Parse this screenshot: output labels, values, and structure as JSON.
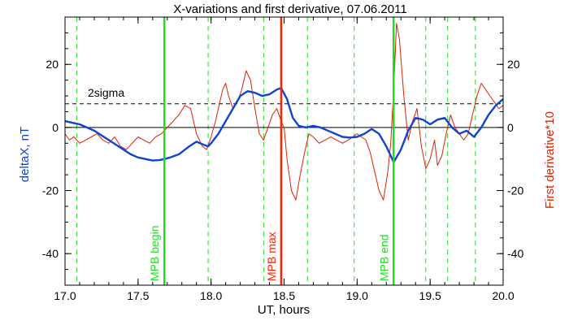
{
  "chart_data": {
    "type": "line",
    "title": "X-variations and first derivative, 07.06.2011",
    "xlabel": "UT, hours",
    "ylabel": "deltaX, nT",
    "ylabel_right": "First derivative*10",
    "xlim": [
      17.0,
      20.0
    ],
    "ylim": [
      -50,
      35
    ],
    "xticks": [
      "17.0",
      "17.5",
      "18.0",
      "18.5",
      "19.0",
      "19.5",
      "20.0"
    ],
    "yticks": [
      "-40",
      "-20",
      "0",
      "20"
    ],
    "yticks_right": [
      "-40",
      "-20",
      "0",
      "20"
    ],
    "threshold": {
      "label": "2sigma",
      "value": 7.5
    },
    "markers_solid": [
      {
        "label": "MPB begin",
        "x": 17.68,
        "color": "#22dd22"
      },
      {
        "label": "MPB max",
        "x": 18.48,
        "color": "#ff2200"
      },
      {
        "label": "MPB end",
        "x": 19.25,
        "color": "#22dd22"
      }
    ],
    "markers_dashed_x": [
      17.08,
      17.98,
      18.36,
      18.66,
      18.98,
      19.47,
      19.62,
      19.81
    ],
    "colors": {
      "deltaX": "#1144cc",
      "derivative": "#dd2200",
      "green": "#22dd22",
      "red": "#ff2200"
    },
    "series": [
      {
        "key": "deltaX",
        "x": [
          17.0,
          17.05,
          17.1,
          17.15,
          17.2,
          17.25,
          17.3,
          17.35,
          17.4,
          17.45,
          17.5,
          17.55,
          17.6,
          17.65,
          17.68,
          17.72,
          17.78,
          17.85,
          17.9,
          17.95,
          17.98,
          18.0,
          18.05,
          18.1,
          18.15,
          18.2,
          18.25,
          18.3,
          18.35,
          18.4,
          18.45,
          18.48,
          18.52,
          18.56,
          18.6,
          18.65,
          18.7,
          18.75,
          18.8,
          18.85,
          18.9,
          18.95,
          19.0,
          19.05,
          19.1,
          19.15,
          19.2,
          19.25,
          19.3,
          19.35,
          19.4,
          19.45,
          19.5,
          19.55,
          19.6,
          19.65,
          19.7,
          19.75,
          19.8,
          19.85,
          19.9,
          19.95,
          20.0
        ],
        "values": [
          2,
          1.5,
          1,
          0,
          -1,
          -2.5,
          -4,
          -5.5,
          -7,
          -8.5,
          -9.5,
          -10,
          -10.5,
          -10.3,
          -10,
          -9.5,
          -8.5,
          -6,
          -4.5,
          -5.5,
          -6,
          -5,
          -2,
          2,
          6,
          10,
          11.5,
          11,
          10,
          10.5,
          12,
          12.5,
          9,
          3,
          0.5,
          0,
          0.5,
          0,
          -1,
          -2,
          -3,
          -3.2,
          -3,
          -2,
          -0.5,
          -2,
          -6,
          -11,
          -7,
          -1,
          3,
          2.5,
          1,
          2.5,
          3,
          0,
          -2,
          -1,
          -3,
          0,
          4,
          7,
          9
        ]
      },
      {
        "key": "derivative",
        "x": [
          17.0,
          17.03,
          17.06,
          17.1,
          17.14,
          17.18,
          17.22,
          17.26,
          17.3,
          17.34,
          17.38,
          17.42,
          17.46,
          17.5,
          17.54,
          17.58,
          17.62,
          17.66,
          17.7,
          17.74,
          17.78,
          17.82,
          17.86,
          17.9,
          17.94,
          17.97,
          18.0,
          18.03,
          18.06,
          18.08,
          18.1,
          18.12,
          18.15,
          18.18,
          18.21,
          18.24,
          18.27,
          18.3,
          18.33,
          18.36,
          18.39,
          18.42,
          18.45,
          18.48,
          18.5,
          18.52,
          18.55,
          18.58,
          18.61,
          18.64,
          18.67,
          18.7,
          18.74,
          18.78,
          18.82,
          18.86,
          18.9,
          18.94,
          18.97,
          19.0,
          19.03,
          19.06,
          19.09,
          19.12,
          19.15,
          19.18,
          19.21,
          19.23,
          19.25,
          19.27,
          19.29,
          19.32,
          19.35,
          19.38,
          19.41,
          19.44,
          19.47,
          19.5,
          19.53,
          19.55,
          19.58,
          19.61,
          19.64,
          19.67,
          19.7,
          19.73,
          19.76,
          19.79,
          19.82,
          19.85,
          19.88,
          19.91,
          19.94,
          19.97,
          20.0
        ],
        "values": [
          -2,
          -4,
          -3,
          -5,
          -4,
          -3,
          -2,
          -4,
          -5,
          -3,
          -6,
          -7,
          -5,
          -3,
          -4,
          -5,
          -3,
          -2,
          0,
          2,
          4,
          7,
          6,
          -2,
          -6,
          -7,
          -3,
          2,
          8,
          12,
          14,
          10,
          6,
          8,
          12,
          18,
          15,
          6,
          -2,
          -4,
          0,
          4,
          6,
          2,
          0,
          -10,
          -20,
          -23,
          -15,
          -8,
          -2,
          -3,
          -5,
          -4,
          -3,
          -4,
          -5,
          -4,
          -3,
          -2,
          -3,
          -4,
          -8,
          -14,
          -20,
          -23,
          -14,
          -5,
          12,
          33,
          28,
          10,
          -4,
          2,
          6,
          -6,
          -13,
          -10,
          -4,
          -12,
          -9,
          -2,
          4,
          0,
          -2,
          -4,
          -2,
          4,
          10,
          14,
          12,
          10,
          8,
          6,
          7
        ]
      }
    ]
  }
}
